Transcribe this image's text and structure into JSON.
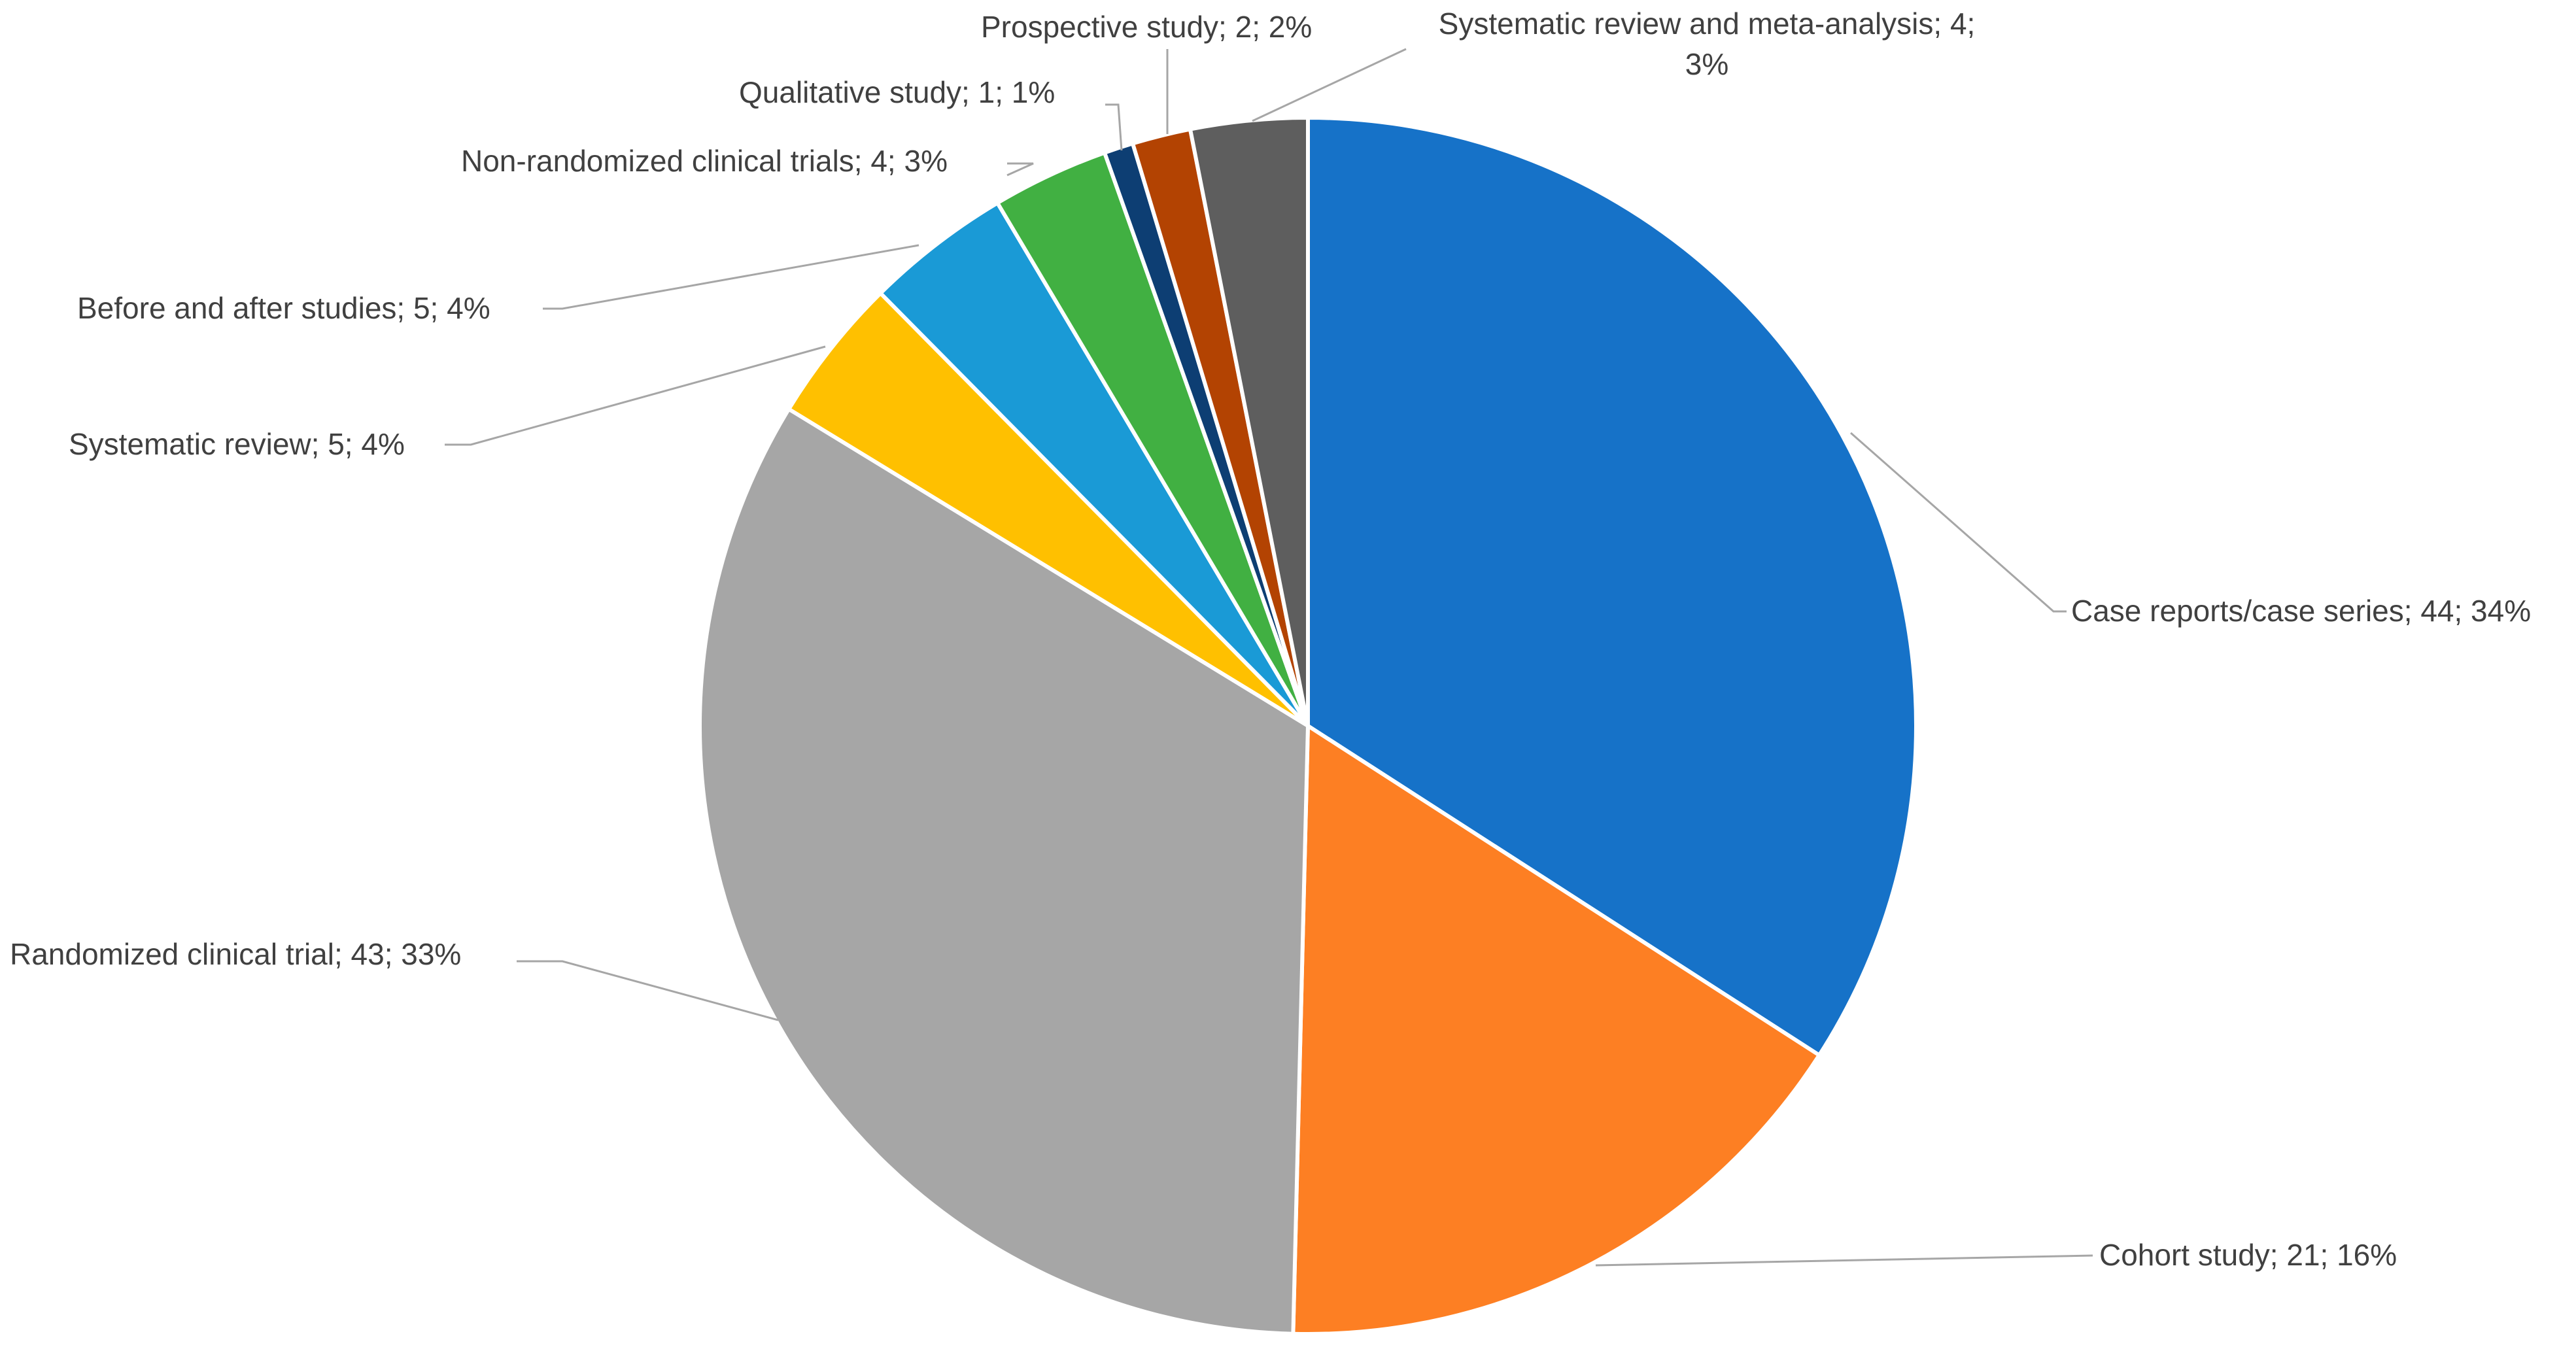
{
  "chart_data": {
    "type": "pie",
    "title": "",
    "start_angle_deg": 0,
    "direction": "clockwise",
    "slices": [
      {
        "label": "Case reports/case series",
        "value": 44,
        "percent": "34%",
        "color": "#1672c8",
        "label_text": "Case reports/case series; 44; 34%"
      },
      {
        "label": "Cohort study",
        "value": 21,
        "percent": "16%",
        "color": "#fd7f23",
        "label_text": "Cohort study; 21; 16%"
      },
      {
        "label": "Randomized clinical trial",
        "value": 43,
        "percent": "33%",
        "color": "#a6a6a6",
        "label_text": "Randomized clinical trial; 43; 33%"
      },
      {
        "label": "Systematic review",
        "value": 5,
        "percent": "4%",
        "color": "#ffc000",
        "label_text": "Systematic review; 5; 4%"
      },
      {
        "label": "Before and after studies",
        "value": 5,
        "percent": "4%",
        "color": "#1a9ad6",
        "label_text": "Before and after studies; 5; 4%"
      },
      {
        "label": "Non-randomized clinical trials",
        "value": 4,
        "percent": "3%",
        "color": "#41b042",
        "label_text": "Non-randomized clinical trials; 4; 3%"
      },
      {
        "label": "Qualitative study",
        "value": 1,
        "percent": "1%",
        "color": "#0d3e73",
        "label_text": "Qualitative study; 1; 1%"
      },
      {
        "label": "Prospective study",
        "value": 2,
        "percent": "2%",
        "color": "#b34302",
        "label_text": "Prospective study; 2; 2%"
      },
      {
        "label": "Systematic review and meta-analysis",
        "value": 4,
        "percent": "3%",
        "color": "#5e5e5e",
        "label_text_lines": [
          "Systematic review and meta-analysis; 4;",
          "3%"
        ]
      }
    ]
  }
}
